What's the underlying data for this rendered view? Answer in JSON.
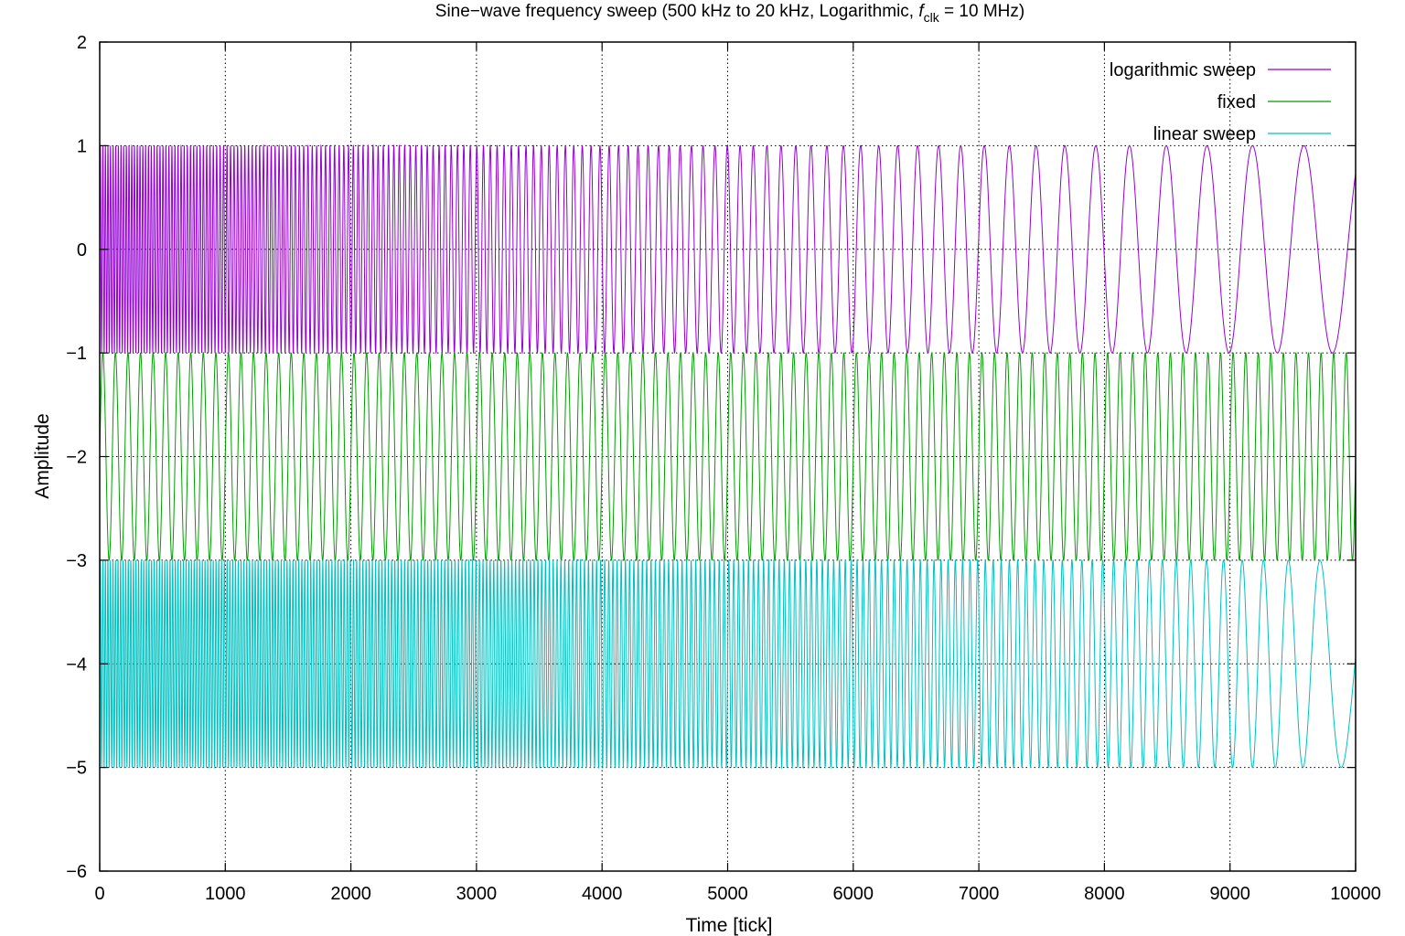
{
  "chart_data": {
    "type": "line",
    "title_prefix": "Sine−wave frequency sweep (500 kHz to 20 kHz, Logarithmic, ",
    "title_symbol": "f",
    "title_subscript": "clk",
    "title_suffix": " = 10 MHz)",
    "xlabel": "Time [tick]",
    "ylabel": "Amplitude",
    "xlim": [
      0,
      10000
    ],
    "ylim": [
      -6,
      2
    ],
    "xticks": [
      0,
      1000,
      2000,
      3000,
      4000,
      5000,
      6000,
      7000,
      8000,
      9000,
      10000
    ],
    "yticks": [
      2,
      1,
      0,
      -1,
      -2,
      -3,
      -4,
      -5,
      -6
    ],
    "ytick_labels": [
      "2",
      "1",
      "0",
      "−1",
      "−2",
      "−3",
      "−4",
      "−5",
      "−6"
    ],
    "grid": true,
    "legend_position": "top-right",
    "series": [
      {
        "name": "logarithmic sweep",
        "color": "#9400d3",
        "offset": 0,
        "amplitude": 1,
        "f_start_cycles_per_tick": 0.05,
        "f_end_cycles_per_tick": 0.002,
        "sweep": "logarithmic"
      },
      {
        "name": "fixed",
        "color": "#009e00",
        "offset": -2,
        "amplitude": 1,
        "f_cycles_per_tick": 0.01,
        "sweep": "none"
      },
      {
        "name": "linear sweep",
        "color": "#00c0c0",
        "offset": -4,
        "amplitude": 1,
        "f_start_cycles_per_tick": 0.05,
        "f_end_cycles_per_tick": 0.002,
        "sweep": "linear"
      }
    ]
  }
}
